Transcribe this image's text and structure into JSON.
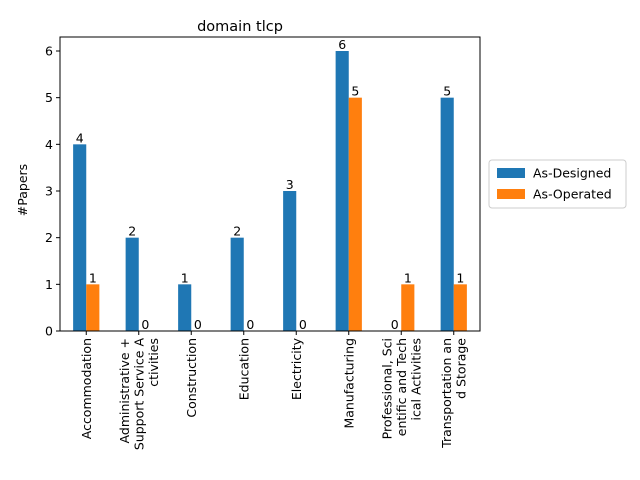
{
  "chart_data": {
    "type": "bar",
    "title": "domain tlcp",
    "xlabel": "",
    "ylabel": "#Papers",
    "ylim": [
      0,
      6.3
    ],
    "yticks": [
      0,
      1,
      2,
      3,
      4,
      5,
      6
    ],
    "grid": false,
    "legend_position": "right",
    "categories": [
      "Accommodation",
      "Administrative +\nSupport Service A\nctivities",
      "Construction",
      "Education",
      "Electricity",
      "Manufacturing",
      "Professional, Sci\nentific and Tech\nical Activities",
      "Transportation an\nd Storage"
    ],
    "series": [
      {
        "name": "As-Designed",
        "color": "#1f77b4",
        "values": [
          4,
          2,
          1,
          2,
          3,
          6,
          0,
          5
        ]
      },
      {
        "name": "As-Operated",
        "color": "#ff7f0e",
        "values": [
          1,
          0,
          0,
          0,
          0,
          5,
          1,
          1
        ]
      }
    ]
  }
}
